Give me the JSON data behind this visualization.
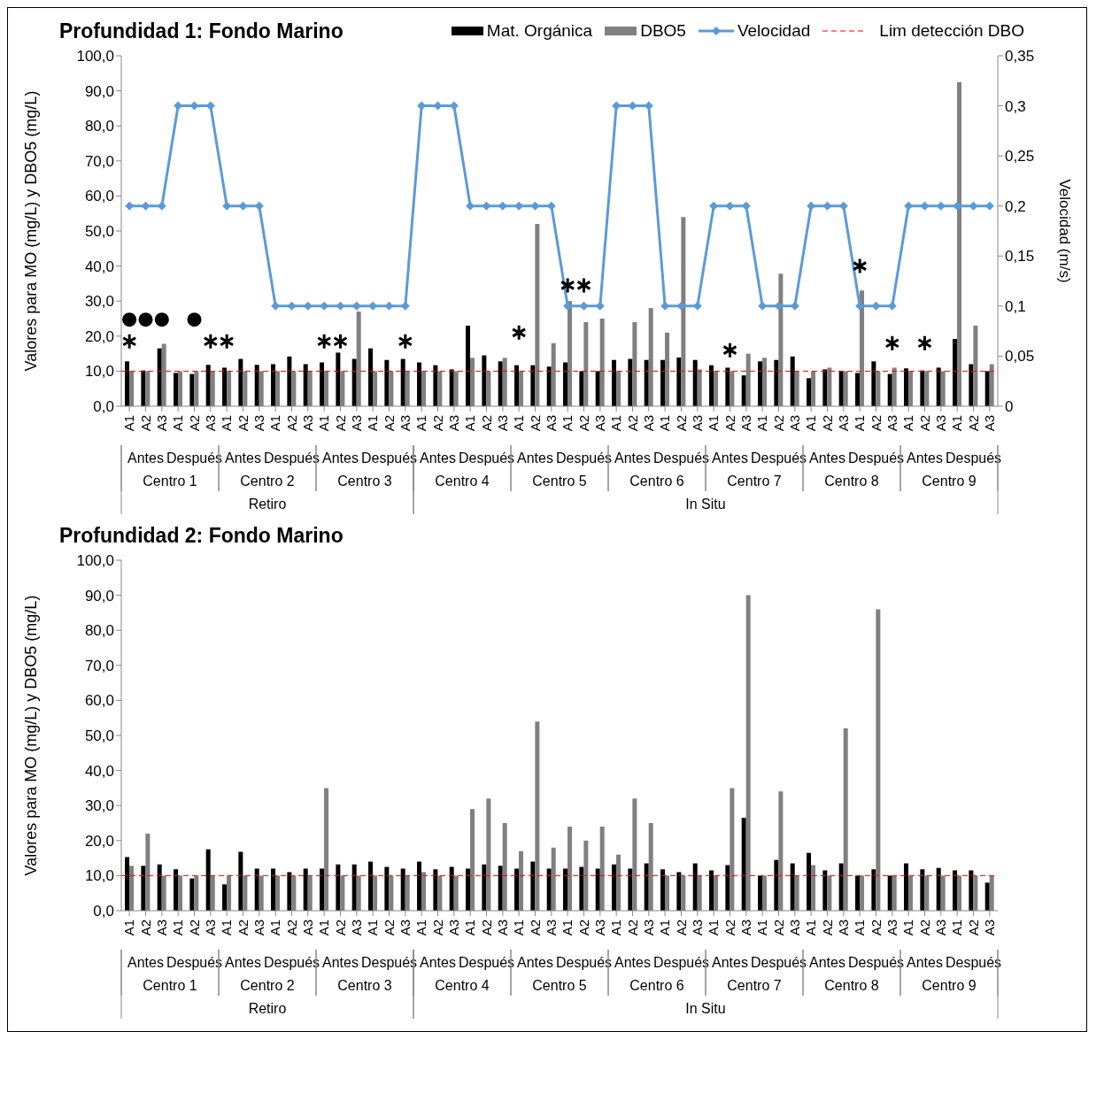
{
  "chart_data": [
    {
      "type": "bar",
      "title": "Profundidad 1: Fondo Marino",
      "ylabel": "Valores para MO (mg/L) y DBO5 (mg/L)",
      "y2label": "Velocidad (m/s)",
      "legend": "top right",
      "categories": [
        "A1",
        "A2",
        "A3",
        "A1",
        "A2",
        "A3",
        "A1",
        "A2",
        "A3",
        "A1",
        "A2",
        "A3",
        "A1",
        "A2",
        "A3",
        "A1",
        "A2",
        "A3",
        "A1",
        "A2",
        "A3",
        "A1",
        "A2",
        "A3",
        "A1",
        "A2",
        "A3",
        "A1",
        "A2",
        "A3",
        "A1",
        "A2",
        "A3",
        "A1",
        "A2",
        "A3",
        "A1",
        "A2",
        "A3",
        "A1",
        "A2",
        "A3",
        "A1",
        "A2",
        "A3",
        "A1",
        "A2",
        "A3",
        "A1",
        "A2",
        "A3",
        "A1",
        "A2",
        "A3"
      ],
      "series": [
        {
          "name": "Mat. Orgánica",
          "color": "#000000",
          "values": [
            12.8,
            10.2,
            16.5,
            9.5,
            9.2,
            11.8,
            11,
            13.5,
            11.8,
            12,
            14.2,
            12,
            12.5,
            15.3,
            13.5,
            16.5,
            13.2,
            13.5,
            12.5,
            11.7,
            10.5,
            23,
            14.5,
            12.8,
            11.7,
            11.7,
            11.3,
            12.5,
            10,
            10,
            13.2,
            13.5,
            13.2,
            13.2,
            13.9,
            13.2,
            11.7,
            11,
            8.8,
            12.8,
            13.2,
            14.2,
            8,
            10.5,
            10,
            9.5,
            12.8,
            9.2,
            10.8,
            10.2,
            11,
            19.2,
            12,
            10
          ]
        },
        {
          "name": "DBO5",
          "color": "#808080",
          "values": [
            10,
            10,
            17.8,
            10,
            10,
            10,
            10,
            10,
            10,
            10,
            10,
            10,
            10,
            10,
            27,
            10,
            10,
            10,
            10,
            10,
            10,
            13.8,
            10,
            13.8,
            10,
            52,
            18,
            30,
            24,
            25,
            10,
            24,
            28,
            21,
            54,
            10.5,
            10,
            10,
            15,
            13.8,
            37.8,
            10,
            10,
            11,
            10,
            33,
            10,
            11,
            10,
            10,
            10,
            92.5,
            23,
            12
          ]
        },
        {
          "name": "Velocidad",
          "type": "line",
          "axis": "y2",
          "marker": "diamond",
          "color": "#5b9bd5",
          "values": [
            0.2,
            0.2,
            0.2,
            0.3,
            0.3,
            0.3,
            0.2,
            0.2,
            0.2,
            0.1,
            0.1,
            0.1,
            0.1,
            0.1,
            0.1,
            0.1,
            0.1,
            0.1,
            0.3,
            0.3,
            0.3,
            0.2,
            0.2,
            0.2,
            0.2,
            0.2,
            0.2,
            0.1,
            0.1,
            0.1,
            0.3,
            0.3,
            0.3,
            0.1,
            0.1,
            0.1,
            0.2,
            0.2,
            0.2,
            0.1,
            0.1,
            0.1,
            0.2,
            0.2,
            0.2,
            0.1,
            0.1,
            0.1,
            0.2,
            0.2,
            0.2,
            0.2,
            0.2,
            0.2
          ]
        },
        {
          "type": "scatter",
          "marker": "cross",
          "color": "#000000",
          "values": [
            18.5,
            null,
            null,
            null,
            null,
            18.5,
            18.5,
            null,
            null,
            null,
            null,
            null,
            18.5,
            18.5,
            null,
            null,
            null,
            18.5,
            null,
            null,
            null,
            null,
            null,
            null,
            21,
            null,
            null,
            34.5,
            34.5,
            null,
            null,
            null,
            null,
            null,
            null,
            null,
            null,
            16,
            null,
            null,
            null,
            null,
            null,
            null,
            null,
            40,
            null,
            18,
            null,
            18,
            null,
            null,
            null,
            null
          ]
        },
        {
          "type": "scatter",
          "marker": "circle",
          "color": "#000000",
          "values": [
            24.7,
            24.7,
            24.7,
            null,
            24.7,
            null,
            null,
            null,
            null,
            null,
            null,
            null,
            null,
            null,
            null,
            null,
            null,
            null,
            null,
            null,
            null,
            null,
            null,
            null,
            null,
            null,
            null,
            null,
            null,
            null,
            null,
            null,
            null,
            null,
            null,
            null,
            null,
            null,
            null,
            null,
            null,
            null,
            null,
            null,
            null,
            null,
            null,
            null,
            null,
            null,
            null,
            null,
            null,
            null
          ]
        }
      ],
      "ylim": [
        0,
        100
      ],
      "yticks": [
        {
          "value": 0,
          "label": "0,0"
        },
        {
          "value": 10,
          "label": "10,0"
        },
        {
          "value": 20,
          "label": "20,0"
        },
        {
          "value": 30,
          "label": "30,0"
        },
        {
          "value": 40,
          "label": "40,0"
        },
        {
          "value": 50,
          "label": "50,0"
        },
        {
          "value": 60,
          "label": "60,0"
        },
        {
          "value": 70,
          "label": "70,0"
        },
        {
          "value": 80,
          "label": "80,0"
        },
        {
          "value": 90,
          "label": "90,0"
        },
        {
          "value": 100,
          "label": "100,0"
        }
      ],
      "y2lim": [
        0,
        0.35
      ],
      "y2ticks": [
        0,
        {
          "value": 0.05,
          "label": "0,05"
        },
        {
          "value": 0.1,
          "label": "0,1"
        },
        {
          "value": 0.15,
          "label": "0,15"
        },
        {
          "value": 0.2,
          "label": "0,2"
        },
        {
          "value": 0.25,
          "label": "0,25"
        },
        {
          "value": 0.3,
          "label": "0,3"
        },
        {
          "value": 0.35,
          "label": "0,35"
        }
      ],
      "ref_lines": [
        {
          "axis": "y",
          "value": 10,
          "label": "Lim detección DBO",
          "color": "#ff0000",
          "line_style": "dashed"
        }
      ],
      "annotations": [
        "Antes",
        "Después",
        "Antes",
        "Después",
        "Antes",
        "Después",
        "Antes",
        "Después",
        "Antes",
        "Después",
        "Antes",
        "Después",
        "Antes",
        "Después",
        "Antes",
        "Después",
        "Antes",
        "Después",
        "Centro 1",
        "Centro 2",
        "Centro 3",
        "Centro 4",
        "Centro 5",
        "Centro 6",
        "Centro 7",
        "Centro 8",
        "Centro 9",
        "Retiro",
        "In Situ"
      ]
    },
    {
      "type": "bar",
      "title": "Profundidad 2: Fondo Marino",
      "ylabel": "Valores para MO (mg/L) y DBO5 (mg/L)",
      "categories": [
        "A1",
        "A2",
        "A3",
        "A1",
        "A2",
        "A3",
        "A1",
        "A2",
        "A3",
        "A1",
        "A2",
        "A3",
        "A1",
        "A2",
        "A3",
        "A1",
        "A2",
        "A3",
        "A1",
        "A2",
        "A3",
        "A1",
        "A2",
        "A3",
        "A1",
        "A2",
        "A3",
        "A1",
        "A2",
        "A3",
        "A1",
        "A2",
        "A3",
        "A1",
        "A2",
        "A3",
        "A1",
        "A2",
        "A3",
        "A1",
        "A2",
        "A3",
        "A1",
        "A2",
        "A3",
        "A1",
        "A2",
        "A3",
        "A1",
        "A2",
        "A3",
        "A1",
        "A2",
        "A3"
      ],
      "series": [
        {
          "color": "#000000",
          "values": [
            15.3,
            12.8,
            13.2,
            11.8,
            9.2,
            17.5,
            7.5,
            16.8,
            12,
            12,
            11,
            12,
            12,
            13.2,
            13.2,
            14,
            12.5,
            12,
            14,
            11.8,
            12.5,
            12,
            13.2,
            12.8,
            12,
            14,
            12,
            12,
            12.5,
            12,
            13.2,
            12,
            13.5,
            11.8,
            11,
            13.5,
            11.5,
            13,
            26.5,
            10,
            14.5,
            13.5,
            16.5,
            11.5,
            13.5,
            10,
            11.8,
            10,
            13.5,
            11.8,
            12.2,
            11.5,
            11.5,
            8
          ]
        },
        {
          "color": "#808080",
          "values": [
            12.8,
            22,
            10,
            10,
            10,
            10,
            10,
            10,
            10,
            10,
            10,
            10,
            35,
            10,
            10,
            10,
            10,
            10,
            11,
            10,
            10,
            29,
            32,
            25,
            17,
            54,
            18,
            24,
            20,
            24,
            16,
            32,
            25,
            10,
            10,
            10,
            10,
            35,
            90,
            10,
            34,
            10,
            13,
            10,
            52,
            10,
            86,
            10,
            10,
            10,
            10,
            10,
            10,
            10
          ]
        }
      ],
      "ylim": [
        0,
        100
      ],
      "yticks": [
        {
          "value": 0,
          "label": "0,0"
        },
        {
          "value": 10,
          "label": "10,0"
        },
        {
          "value": 20,
          "label": "20,0"
        },
        {
          "value": 30,
          "label": "30,0"
        },
        {
          "value": 40,
          "label": "40,0"
        },
        {
          "value": 50,
          "label": "50,0"
        },
        {
          "value": 60,
          "label": "60,0"
        },
        {
          "value": 70,
          "label": "70,0"
        },
        {
          "value": 80,
          "label": "80,0"
        },
        {
          "value": 90,
          "label": "90,0"
        },
        {
          "value": 100,
          "label": "100,0"
        }
      ],
      "ref_lines": [
        {
          "axis": "y",
          "value": 10,
          "color": "#ff0000",
          "line_style": "dashed"
        }
      ],
      "annotations": [
        "Antes",
        "Después",
        "Antes",
        "Después",
        "Antes",
        "Después",
        "Antes",
        "Después",
        "Antes",
        "Después",
        "Antes",
        "Después",
        "Antes",
        "Después",
        "Antes",
        "Después",
        "Antes",
        "Después",
        "Centro 1",
        "Centro 2",
        "Centro 3",
        "Centro 4",
        "Centro 5",
        "Centro 6",
        "Centro 7",
        "Centro 8",
        "Centro 9",
        "Retiro",
        "In Situ"
      ]
    }
  ]
}
